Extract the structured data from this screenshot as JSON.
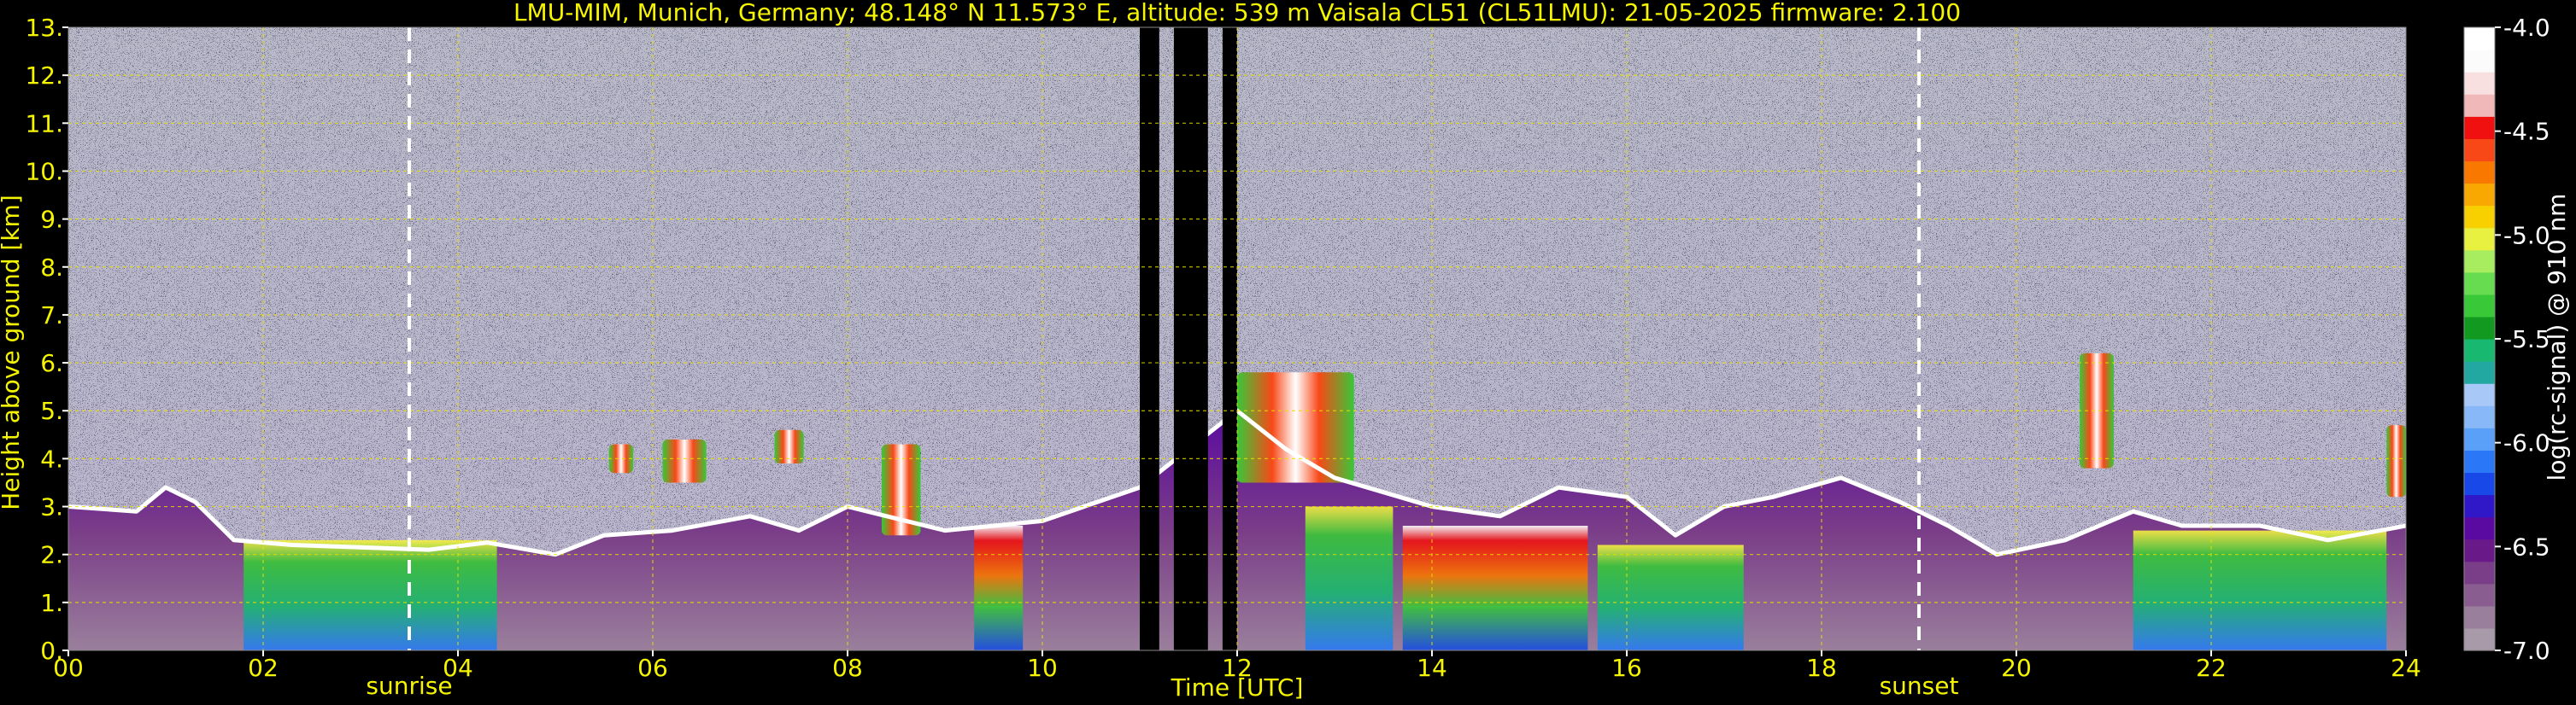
{
  "title": "LMU-MIM, Munich, Germany; 48.148° N 11.573° E, altitude: 539 m    Vaisala CL51 (CL51LMU): 21-05-2025    firmware: 2.100",
  "chart_data": {
    "type": "heatmap",
    "xlabel": "Time [UTC]",
    "ylabel": "Height above ground [km]",
    "x_ticks": [
      "00",
      "02",
      "04",
      "06",
      "08",
      "10",
      "12",
      "14",
      "16",
      "18",
      "20",
      "22",
      "24"
    ],
    "y_ticks": [
      "0.",
      "1.",
      "2.",
      "3.",
      "4.",
      "5.",
      "6.",
      "7.",
      "8.",
      "9.",
      "10.",
      "11.",
      "12.",
      "13."
    ],
    "xlim": [
      0,
      24
    ],
    "ylim": [
      0,
      13
    ],
    "grid": true,
    "colorbar": {
      "label": "log(rc-signal) @ 910 nm",
      "range": [
        -7.0,
        -4.0
      ],
      "ticks": [
        "-4.0",
        "-4.5",
        "-5.0",
        "-5.5",
        "-6.0",
        "-6.5",
        "-7.0"
      ],
      "tick_values": [
        -4.0,
        -4.5,
        -5.0,
        -5.5,
        -6.0,
        -6.5,
        -7.0
      ],
      "colors": [
        "#a89aa8",
        "#9a7f9c",
        "#8a5d90",
        "#7a3d88",
        "#6a1a88",
        "#5a0aa0",
        "#3018c8",
        "#1848e8",
        "#2a78f8",
        "#5aa0f8",
        "#88b8f8",
        "#a8c8f8",
        "#22a8a0",
        "#18b870",
        "#129a20",
        "#38c838",
        "#68dc50",
        "#a8ec60",
        "#e8f040",
        "#f8d000",
        "#f8a800",
        "#f87800",
        "#f84818",
        "#f01010",
        "#f0b8b8",
        "#f8e0e0",
        "#fbfbfb",
        "#ffffff"
      ]
    },
    "annotations": [
      {
        "text": "sunrise",
        "x": 3.5
      },
      {
        "text": "sunset",
        "x": 19.0
      }
    ],
    "cloud_base": [
      {
        "t": 0.0,
        "h": 3.0
      },
      {
        "t": 0.7,
        "h": 2.9
      },
      {
        "t": 1.0,
        "h": 3.4
      },
      {
        "t": 1.3,
        "h": 3.1
      },
      {
        "t": 1.7,
        "h": 2.3
      },
      {
        "t": 2.3,
        "h": 2.2
      },
      {
        "t": 3.0,
        "h": 2.15
      },
      {
        "t": 3.7,
        "h": 2.1
      },
      {
        "t": 4.3,
        "h": 2.25
      },
      {
        "t": 5.0,
        "h": 2.0
      },
      {
        "t": 5.5,
        "h": 2.4
      },
      {
        "t": 6.2,
        "h": 2.5
      },
      {
        "t": 7.0,
        "h": 2.8
      },
      {
        "t": 7.5,
        "h": 2.5
      },
      {
        "t": 8.0,
        "h": 3.0
      },
      {
        "t": 9.0,
        "h": 2.5
      },
      {
        "t": 10.0,
        "h": 2.7
      },
      {
        "t": 11.0,
        "h": 3.4
      },
      {
        "t": 12.0,
        "h": 5.0
      },
      {
        "t": 12.5,
        "h": 4.2
      },
      {
        "t": 13.0,
        "h": 3.6
      },
      {
        "t": 14.0,
        "h": 3.0
      },
      {
        "t": 14.7,
        "h": 2.8
      },
      {
        "t": 15.3,
        "h": 3.4
      },
      {
        "t": 16.0,
        "h": 3.2
      },
      {
        "t": 16.5,
        "h": 2.4
      },
      {
        "t": 17.0,
        "h": 3.0
      },
      {
        "t": 17.5,
        "h": 3.2
      },
      {
        "t": 18.2,
        "h": 3.6
      },
      {
        "t": 18.8,
        "h": 3.1
      },
      {
        "t": 19.3,
        "h": 2.6
      },
      {
        "t": 19.8,
        "h": 2.0
      },
      {
        "t": 20.5,
        "h": 2.3
      },
      {
        "t": 21.2,
        "h": 2.9
      },
      {
        "t": 21.7,
        "h": 2.6
      },
      {
        "t": 22.5,
        "h": 2.6
      },
      {
        "t": 23.2,
        "h": 2.3
      },
      {
        "t": 24.0,
        "h": 2.6
      }
    ],
    "rain_plumes": [
      {
        "t0": 1.8,
        "t1": 4.4,
        "top": 2.3,
        "strength": "moderate"
      },
      {
        "t0": 9.3,
        "t1": 9.8,
        "top": 2.6,
        "strength": "strong"
      },
      {
        "t0": 12.7,
        "t1": 13.6,
        "top": 3.0,
        "strength": "moderate"
      },
      {
        "t0": 13.7,
        "t1": 15.6,
        "top": 2.6,
        "strength": "strong"
      },
      {
        "t0": 15.7,
        "t1": 17.2,
        "top": 2.2,
        "strength": "moderate"
      },
      {
        "t0": 21.2,
        "t1": 23.8,
        "top": 2.5,
        "strength": "moderate"
      }
    ],
    "elevated_layers": [
      {
        "t0": 5.55,
        "t1": 5.8,
        "h0": 3.7,
        "h1": 4.3
      },
      {
        "t0": 6.1,
        "t1": 6.55,
        "h0": 3.5,
        "h1": 4.4
      },
      {
        "t0": 7.25,
        "t1": 7.55,
        "h0": 3.9,
        "h1": 4.6
      },
      {
        "t0": 8.35,
        "t1": 8.75,
        "h0": 2.4,
        "h1": 4.3
      },
      {
        "t0": 12.0,
        "t1": 13.2,
        "h0": 3.5,
        "h1": 5.8
      },
      {
        "t0": 20.65,
        "t1": 21.0,
        "h0": 3.8,
        "h1": 6.2
      },
      {
        "t0": 23.8,
        "t1": 24.0,
        "h0": 3.2,
        "h1": 4.7
      }
    ],
    "data_gaps": [
      {
        "t0": 11.0,
        "t1": 11.2
      },
      {
        "t0": 11.35,
        "t1": 11.7
      },
      {
        "t0": 11.85,
        "t1": 12.0
      }
    ]
  }
}
